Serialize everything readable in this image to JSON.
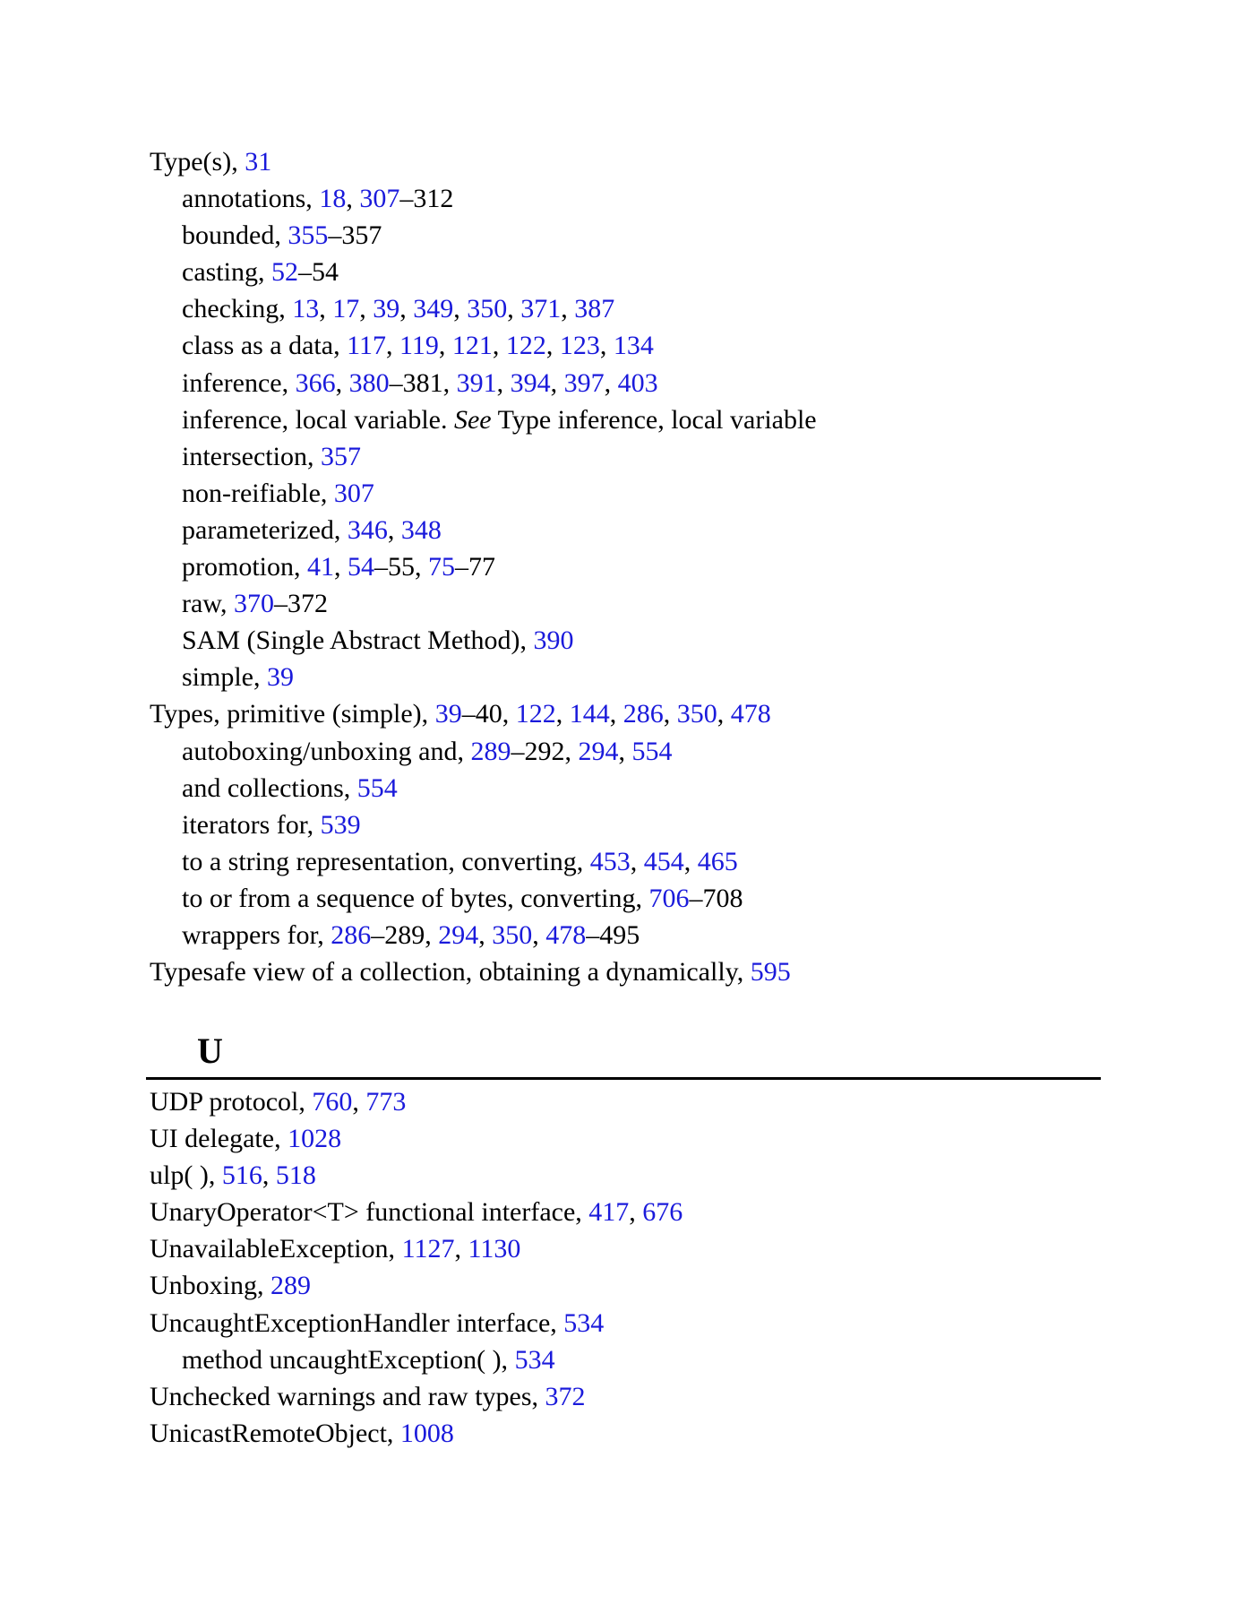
{
  "colors": {
    "link": "#1a1adb",
    "text": "#000000",
    "rule": "#000000"
  },
  "section_t_entries": [
    {
      "level": 0,
      "parts": [
        {
          "t": "Type(s), "
        },
        {
          "t": "31",
          "link": true
        }
      ]
    },
    {
      "level": 1,
      "parts": [
        {
          "t": "annotations, "
        },
        {
          "t": "18",
          "link": true
        },
        {
          "t": ", "
        },
        {
          "t": "307",
          "link": true
        },
        {
          "t": "–312"
        }
      ]
    },
    {
      "level": 1,
      "parts": [
        {
          "t": "bounded, "
        },
        {
          "t": "355",
          "link": true
        },
        {
          "t": "–357"
        }
      ]
    },
    {
      "level": 1,
      "parts": [
        {
          "t": "casting, "
        },
        {
          "t": "52",
          "link": true
        },
        {
          "t": "–54"
        }
      ]
    },
    {
      "level": 1,
      "parts": [
        {
          "t": "checking, "
        },
        {
          "t": "13",
          "link": true
        },
        {
          "t": ", "
        },
        {
          "t": "17",
          "link": true
        },
        {
          "t": ", "
        },
        {
          "t": "39",
          "link": true
        },
        {
          "t": ", "
        },
        {
          "t": "349",
          "link": true
        },
        {
          "t": ", "
        },
        {
          "t": "350",
          "link": true
        },
        {
          "t": ", "
        },
        {
          "t": "371",
          "link": true
        },
        {
          "t": ", "
        },
        {
          "t": "387",
          "link": true
        }
      ]
    },
    {
      "level": 1,
      "parts": [
        {
          "t": "class as a data, "
        },
        {
          "t": "117",
          "link": true
        },
        {
          "t": ", "
        },
        {
          "t": "119",
          "link": true
        },
        {
          "t": ", "
        },
        {
          "t": "121",
          "link": true
        },
        {
          "t": ", "
        },
        {
          "t": "122",
          "link": true
        },
        {
          "t": ", "
        },
        {
          "t": "123",
          "link": true
        },
        {
          "t": ", "
        },
        {
          "t": "134",
          "link": true
        }
      ]
    },
    {
      "level": 1,
      "parts": [
        {
          "t": "inference, "
        },
        {
          "t": "366",
          "link": true
        },
        {
          "t": ", "
        },
        {
          "t": "380",
          "link": true
        },
        {
          "t": "–381, "
        },
        {
          "t": "391",
          "link": true
        },
        {
          "t": ", "
        },
        {
          "t": "394",
          "link": true
        },
        {
          "t": ", "
        },
        {
          "t": "397",
          "link": true
        },
        {
          "t": ", "
        },
        {
          "t": "403",
          "link": true
        }
      ]
    },
    {
      "level": 1,
      "parts": [
        {
          "t": "inference, local variable. "
        },
        {
          "t": "See",
          "italic": true
        },
        {
          "t": " Type inference, local variable"
        }
      ]
    },
    {
      "level": 1,
      "parts": [
        {
          "t": "intersection, "
        },
        {
          "t": "357",
          "link": true
        }
      ]
    },
    {
      "level": 1,
      "parts": [
        {
          "t": "non-reifiable, "
        },
        {
          "t": "307",
          "link": true
        }
      ]
    },
    {
      "level": 1,
      "parts": [
        {
          "t": "parameterized, "
        },
        {
          "t": "346",
          "link": true
        },
        {
          "t": ", "
        },
        {
          "t": "348",
          "link": true
        }
      ]
    },
    {
      "level": 1,
      "parts": [
        {
          "t": "promotion, "
        },
        {
          "t": "41",
          "link": true
        },
        {
          "t": ", "
        },
        {
          "t": "54",
          "link": true
        },
        {
          "t": "–55, "
        },
        {
          "t": "75",
          "link": true
        },
        {
          "t": "–77"
        }
      ]
    },
    {
      "level": 1,
      "parts": [
        {
          "t": "raw, "
        },
        {
          "t": "370",
          "link": true
        },
        {
          "t": "–372"
        }
      ]
    },
    {
      "level": 1,
      "parts": [
        {
          "t": "SAM (Single Abstract Method), "
        },
        {
          "t": "390",
          "link": true
        }
      ]
    },
    {
      "level": 1,
      "parts": [
        {
          "t": "simple, "
        },
        {
          "t": "39",
          "link": true
        }
      ]
    },
    {
      "level": 0,
      "parts": [
        {
          "t": "Types, primitive (simple), "
        },
        {
          "t": "39",
          "link": true
        },
        {
          "t": "–40, "
        },
        {
          "t": "122",
          "link": true
        },
        {
          "t": ", "
        },
        {
          "t": "144",
          "link": true
        },
        {
          "t": ", "
        },
        {
          "t": "286",
          "link": true
        },
        {
          "t": ", "
        },
        {
          "t": "350",
          "link": true
        },
        {
          "t": ", "
        },
        {
          "t": "478",
          "link": true
        }
      ]
    },
    {
      "level": 1,
      "parts": [
        {
          "t": "autoboxing/unboxing and, "
        },
        {
          "t": "289",
          "link": true
        },
        {
          "t": "–292, "
        },
        {
          "t": "294",
          "link": true
        },
        {
          "t": ", "
        },
        {
          "t": "554",
          "link": true
        }
      ]
    },
    {
      "level": 1,
      "parts": [
        {
          "t": "and collections, "
        },
        {
          "t": "554",
          "link": true
        }
      ]
    },
    {
      "level": 1,
      "parts": [
        {
          "t": "iterators for, "
        },
        {
          "t": "539",
          "link": true
        }
      ]
    },
    {
      "level": 1,
      "parts": [
        {
          "t": "to a string representation, converting, "
        },
        {
          "t": "453",
          "link": true
        },
        {
          "t": ", "
        },
        {
          "t": "454",
          "link": true
        },
        {
          "t": ", "
        },
        {
          "t": "465",
          "link": true
        }
      ]
    },
    {
      "level": 1,
      "parts": [
        {
          "t": "to or from a sequence of bytes, converting, "
        },
        {
          "t": "706",
          "link": true
        },
        {
          "t": "–708"
        }
      ]
    },
    {
      "level": 1,
      "parts": [
        {
          "t": "wrappers for, "
        },
        {
          "t": "286",
          "link": true
        },
        {
          "t": "–289, "
        },
        {
          "t": "294",
          "link": true
        },
        {
          "t": ", "
        },
        {
          "t": "350",
          "link": true
        },
        {
          "t": ", "
        },
        {
          "t": "478",
          "link": true
        },
        {
          "t": "–495"
        }
      ]
    },
    {
      "level": 0,
      "parts": [
        {
          "t": "Typesafe view of a collection, obtaining a dynamically, "
        },
        {
          "t": "595",
          "link": true
        }
      ]
    }
  ],
  "section_u": {
    "letter": "U",
    "entries": [
      {
        "level": 0,
        "parts": [
          {
            "t": "UDP protocol, "
          },
          {
            "t": "760",
            "link": true
          },
          {
            "t": ", "
          },
          {
            "t": "773",
            "link": true
          }
        ]
      },
      {
        "level": 0,
        "parts": [
          {
            "t": "UI delegate, "
          },
          {
            "t": "1028",
            "link": true
          }
        ]
      },
      {
        "level": 0,
        "parts": [
          {
            "t": "ulp( ), "
          },
          {
            "t": "516",
            "link": true
          },
          {
            "t": ", "
          },
          {
            "t": "518",
            "link": true
          }
        ]
      },
      {
        "level": 0,
        "parts": [
          {
            "t": "UnaryOperator<T> functional interface, "
          },
          {
            "t": "417",
            "link": true
          },
          {
            "t": ", "
          },
          {
            "t": "676",
            "link": true
          }
        ]
      },
      {
        "level": 0,
        "parts": [
          {
            "t": "UnavailableException, "
          },
          {
            "t": "1127",
            "link": true
          },
          {
            "t": ", "
          },
          {
            "t": "1130",
            "link": true
          }
        ]
      },
      {
        "level": 0,
        "parts": [
          {
            "t": "Unboxing, "
          },
          {
            "t": "289",
            "link": true
          }
        ]
      },
      {
        "level": 0,
        "parts": [
          {
            "t": "UncaughtExceptionHandler interface, "
          },
          {
            "t": "534",
            "link": true
          }
        ]
      },
      {
        "level": 1,
        "parts": [
          {
            "t": "method uncaughtException( ), "
          },
          {
            "t": "534",
            "link": true
          }
        ]
      },
      {
        "level": 0,
        "parts": [
          {
            "t": "Unchecked warnings and raw types, "
          },
          {
            "t": "372",
            "link": true
          }
        ]
      },
      {
        "level": 0,
        "parts": [
          {
            "t": "UnicastRemoteObject, "
          },
          {
            "t": "1008",
            "link": true
          }
        ]
      }
    ]
  }
}
